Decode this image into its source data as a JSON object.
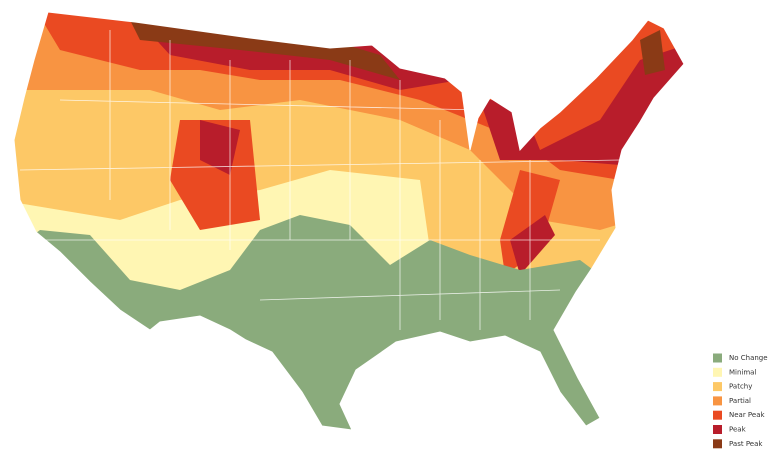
{
  "legend": {
    "items": [
      {
        "label": "No Change",
        "color": "#8aab7c"
      },
      {
        "label": "Minimal",
        "color": "#fff6b3"
      },
      {
        "label": "Patchy",
        "color": "#fdc866"
      },
      {
        "label": "Partial",
        "color": "#f89442"
      },
      {
        "label": "Near Peak",
        "color": "#ea4a22"
      },
      {
        "label": "Peak",
        "color": "#b81d2b"
      },
      {
        "label": "Past Peak",
        "color": "#8a3a16"
      }
    ]
  }
}
